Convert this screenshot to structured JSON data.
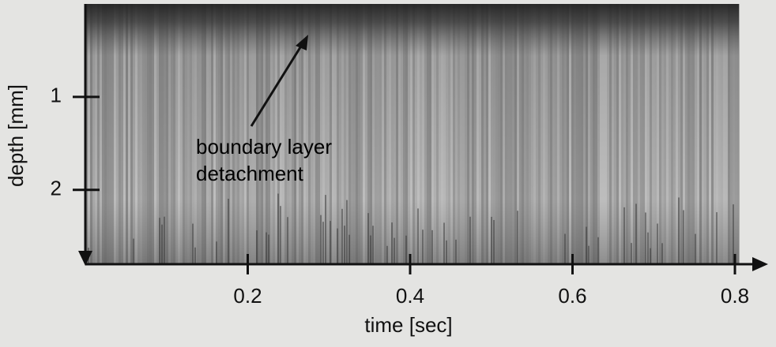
{
  "chart_data": {
    "type": "image",
    "xlabel": "time [sec]",
    "ylabel": "depth [mm]",
    "annotation": [
      "boundary layer",
      "detachment"
    ],
    "xlim": [
      0,
      0.8
    ],
    "xticks": [
      0.2,
      0.4,
      0.6,
      0.8
    ],
    "ylim": [
      0,
      2.8
    ],
    "yticks": [
      1,
      2
    ]
  }
}
